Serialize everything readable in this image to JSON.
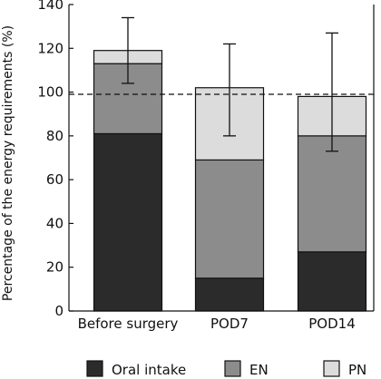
{
  "chart_data": {
    "type": "bar",
    "stacked": true,
    "title": "",
    "xlabel": "",
    "ylabel": "Percentage of the energy requirements (%)",
    "ylim": [
      0,
      140
    ],
    "yticks": [
      0,
      20,
      40,
      60,
      80,
      100,
      120,
      140
    ],
    "categories": [
      "Before surgery",
      "POD7",
      "POD14"
    ],
    "series": [
      {
        "name": "Oral intake",
        "values": [
          81,
          15,
          27
        ],
        "color": "#2b2b2b"
      },
      {
        "name": "EN",
        "values": [
          32,
          54,
          53
        ],
        "color": "#8c8c8c"
      },
      {
        "name": "PN",
        "values": [
          6,
          33,
          18
        ],
        "color": "#dcdcdc"
      }
    ],
    "error_bars": [
      {
        "center": 119,
        "low": 104,
        "high": 134
      },
      {
        "center": 101,
        "low": 80,
        "high": 122
      },
      {
        "center": 98,
        "low": 73,
        "high": 127
      }
    ],
    "reference_line": {
      "value": 99,
      "style": "dashed"
    },
    "legend_position": "bottom",
    "grid": false
  }
}
